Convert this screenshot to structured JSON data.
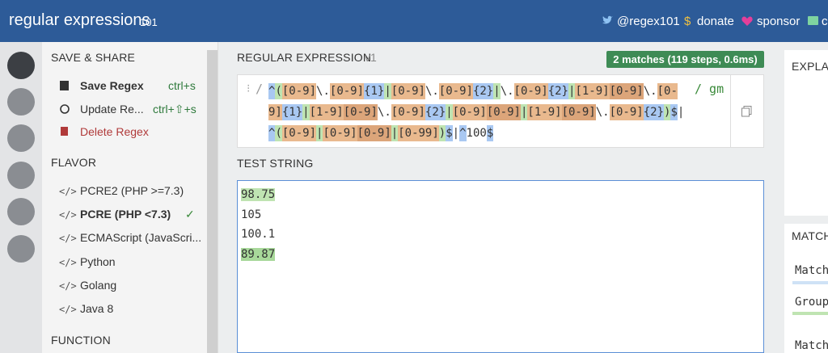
{
  "header": {
    "logo": "regular expressions",
    "version": "101",
    "links": [
      "@regex101",
      "donate",
      "sponsor",
      "c"
    ]
  },
  "save_share": {
    "title": "SAVE & SHARE",
    "items": [
      {
        "label": "Save Regex",
        "shortcut": "ctrl+s"
      },
      {
        "label": "Update Re...",
        "shortcut": "ctrl+⇧+s"
      },
      {
        "label": "Delete Regex"
      }
    ]
  },
  "flavor": {
    "title": "FLAVOR",
    "items": [
      "PCRE2 (PHP >=7.3)",
      "PCRE (PHP <7.3)",
      "ECMAScript (JavaScri...",
      "Python",
      "Golang",
      "Java 8"
    ],
    "selected": 1
  },
  "function": {
    "title": "FUNCTION"
  },
  "regex": {
    "title": "REGULAR EXPRESSION",
    "version": "v1",
    "status": "2 matches (119 steps, 0.6ms)",
    "delimiter": "/",
    "flags": "/ gm",
    "tokens": [
      {
        "text": "^",
        "color": "#a9c8f2"
      },
      {
        "text": "(",
        "color": "#bfe4b2"
      },
      {
        "text": "[0-9]",
        "color": "#e9b98e"
      },
      {
        "text": "\\."
      },
      {
        "text": "[0-9]",
        "color": "#e9b98e"
      },
      {
        "text": "{1}",
        "color": "#a9c8f2"
      },
      {
        "text": "|",
        "color": "#bfe4b2"
      },
      {
        "text": "[0-9]",
        "color": "#e9b98e"
      },
      {
        "text": "\\."
      },
      {
        "text": "[0-9]",
        "color": "#e9b98e"
      },
      {
        "text": "{2}",
        "color": "#a9c8f2"
      },
      {
        "text": "|",
        "color": "#bfe4b2"
      },
      {
        "text": "\\."
      },
      {
        "text": "[0-9]",
        "color": "#e9b98e"
      },
      {
        "text": "{2}",
        "color": "#a9c8f2"
      },
      {
        "text": "|",
        "color": "#bfe4b2"
      },
      {
        "text": "[1-9]",
        "color": "#e9b98e"
      },
      {
        "text": "[0-9]",
        "color": "#dca57a"
      },
      {
        "text": "\\."
      },
      {
        "text": "[0-9]",
        "color": "#e9b98e"
      },
      {
        "text": "{1}",
        "color": "#a9c8f2"
      },
      {
        "text": "|",
        "color": "#bfe4b2"
      },
      {
        "text": "[1-9]",
        "color": "#e9b98e"
      },
      {
        "text": "[0-9]",
        "color": "#dca57a"
      },
      {
        "text": "\\."
      },
      {
        "text": "[0-9]",
        "color": "#e9b98e"
      },
      {
        "text": "{2}",
        "color": "#a9c8f2"
      },
      {
        "text": "|",
        "color": "#bfe4b2"
      },
      {
        "text": "[0-9]",
        "color": "#e9b98e"
      },
      {
        "text": "[0-9]",
        "color": "#dca57a"
      },
      {
        "text": "|",
        "color": "#bfe4b2"
      },
      {
        "text": "[1-9]",
        "color": "#e9b98e"
      },
      {
        "text": "[0-9]",
        "color": "#dca57a"
      },
      {
        "text": "\\."
      },
      {
        "text": "[0-9]",
        "color": "#e9b98e"
      },
      {
        "text": "{2}",
        "color": "#a9c8f2"
      },
      {
        "text": ")",
        "color": "#bfe4b2"
      },
      {
        "text": "$",
        "color": "#a9c8f2"
      },
      {
        "text": "|"
      },
      {
        "text": "^",
        "color": "#a9c8f2"
      },
      {
        "text": "(",
        "color": "#bfe4b2"
      },
      {
        "text": "[0-9]",
        "color": "#e9b98e"
      },
      {
        "text": "|",
        "color": "#bfe4b2"
      },
      {
        "text": "[0-9]",
        "color": "#e9b98e"
      },
      {
        "text": "[0-9]",
        "color": "#dca57a"
      },
      {
        "text": "|",
        "color": "#bfe4b2"
      },
      {
        "text": "[0-99]",
        "color": "#e9b98e"
      },
      {
        "text": ")",
        "color": "#bfe4b2"
      },
      {
        "text": "$",
        "color": "#a9c8f2"
      },
      {
        "text": "|"
      },
      {
        "text": "^",
        "color": "#a9c8f2"
      },
      {
        "text": "100"
      },
      {
        "text": "$",
        "color": "#a9c8f2"
      }
    ]
  },
  "test_string": {
    "title": "TEST STRING",
    "lines": [
      {
        "text": "98.75",
        "highlight": "#bfe4b2"
      },
      {
        "text": "105"
      },
      {
        "text": "100.1"
      },
      {
        "text": "89.87",
        "highlight": "#a8d89a"
      }
    ]
  },
  "explanation": {
    "title": "EXPLA"
  },
  "match_info": {
    "title": "MATCH",
    "rows": [
      "Match",
      "Group",
      "Match"
    ]
  }
}
